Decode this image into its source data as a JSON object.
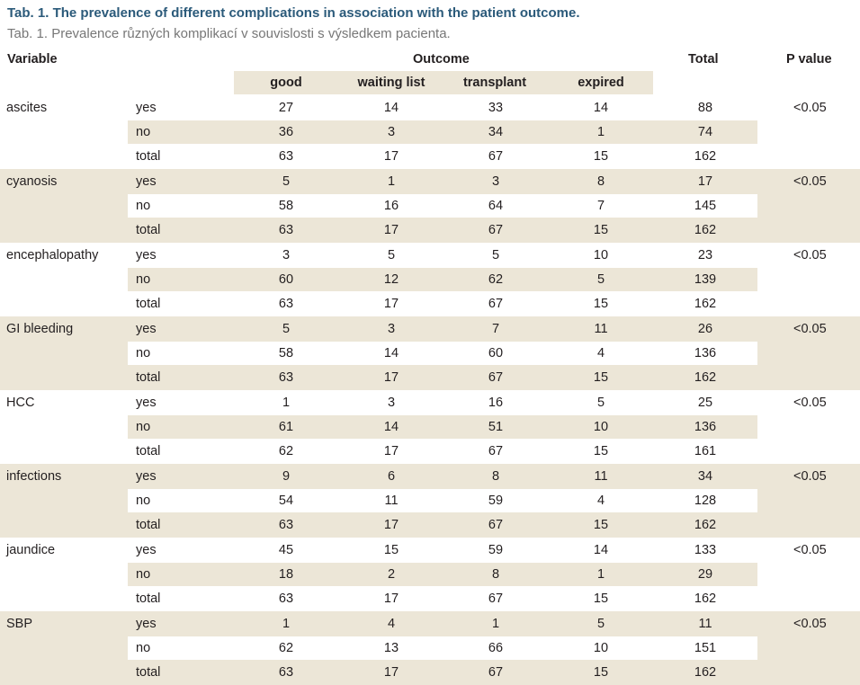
{
  "title_en": "Tab. 1. The prevalence of different complications in association with the patient outcome.",
  "title_cz": "Tab. 1. Prevalence různých komplikací v souvislosti s výsledkem pacienta.",
  "headers": {
    "variable": "Variable",
    "outcome": "Outcome",
    "total": "Total",
    "p_value": "P value",
    "outcome_cols": [
      "good",
      "waiting list",
      "transplant",
      "expired"
    ]
  },
  "row_labels": [
    "yes",
    "no",
    "total"
  ],
  "groups": [
    {
      "variable": "ascites",
      "p": "<0.05",
      "rows": [
        [
          27,
          14,
          33,
          14,
          88
        ],
        [
          36,
          3,
          34,
          1,
          74
        ],
        [
          63,
          17,
          67,
          15,
          162
        ]
      ]
    },
    {
      "variable": "cyanosis",
      "p": "<0.05",
      "rows": [
        [
          5,
          1,
          3,
          8,
          17
        ],
        [
          58,
          16,
          64,
          7,
          145
        ],
        [
          63,
          17,
          67,
          15,
          162
        ]
      ]
    },
    {
      "variable": "encephalopathy",
      "p": "<0.05",
      "rows": [
        [
          3,
          5,
          5,
          10,
          23
        ],
        [
          60,
          12,
          62,
          5,
          139
        ],
        [
          63,
          17,
          67,
          15,
          162
        ]
      ]
    },
    {
      "variable": "GI bleeding",
      "p": "<0.05",
      "rows": [
        [
          5,
          3,
          7,
          11,
          26
        ],
        [
          58,
          14,
          60,
          4,
          136
        ],
        [
          63,
          17,
          67,
          15,
          162
        ]
      ]
    },
    {
      "variable": "HCC",
      "p": "<0.05",
      "rows": [
        [
          1,
          3,
          16,
          5,
          25
        ],
        [
          61,
          14,
          51,
          10,
          136
        ],
        [
          62,
          17,
          67,
          15,
          161
        ]
      ]
    },
    {
      "variable": "infections",
      "p": "<0.05",
      "rows": [
        [
          9,
          6,
          8,
          11,
          34
        ],
        [
          54,
          11,
          59,
          4,
          128
        ],
        [
          63,
          17,
          67,
          15,
          162
        ]
      ]
    },
    {
      "variable": "jaundice",
      "p": "<0.05",
      "rows": [
        [
          45,
          15,
          59,
          14,
          133
        ],
        [
          18,
          2,
          8,
          1,
          29
        ],
        [
          63,
          17,
          67,
          15,
          162
        ]
      ]
    },
    {
      "variable": "SBP",
      "p": "<0.05",
      "rows": [
        [
          1,
          4,
          1,
          5,
          11
        ],
        [
          62,
          13,
          66,
          10,
          151
        ],
        [
          63,
          17,
          67,
          15,
          162
        ]
      ]
    }
  ],
  "colors": {
    "band": "#ece6d7",
    "title": "#2b5a7a",
    "subtitle": "#777777"
  }
}
